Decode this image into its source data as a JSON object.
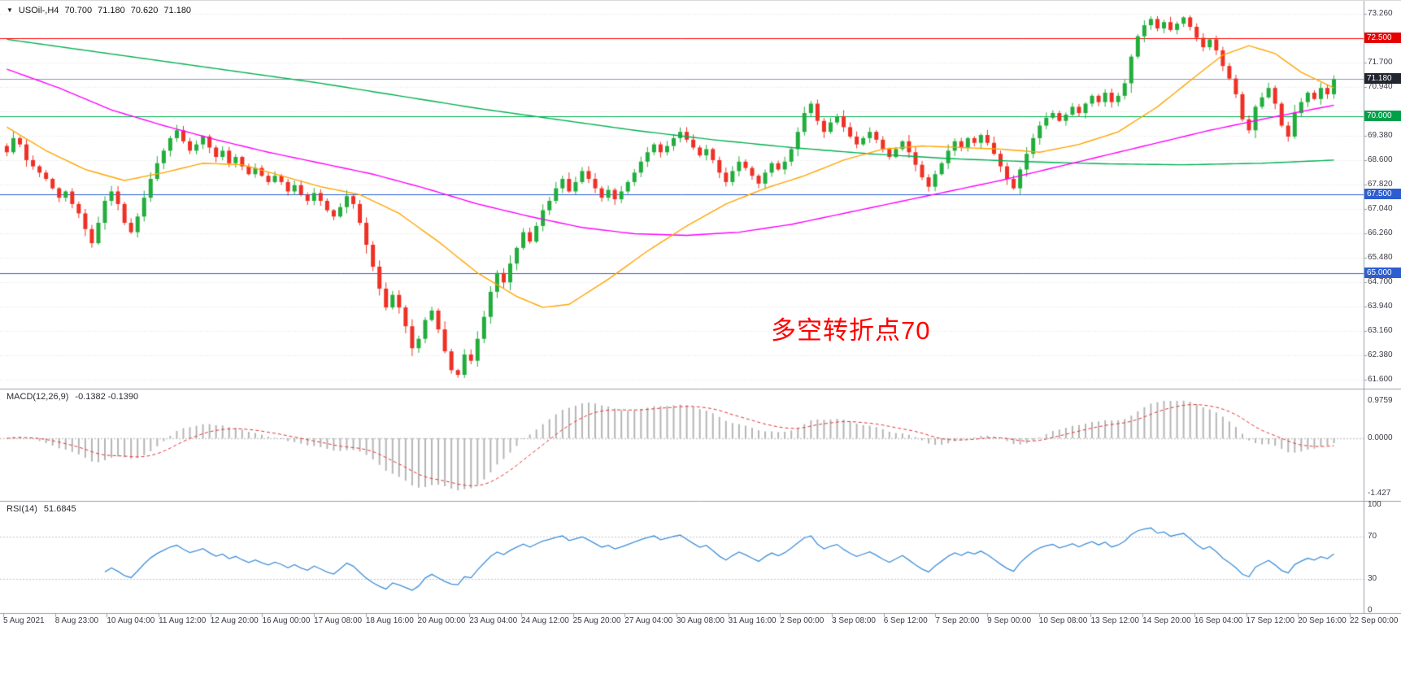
{
  "quote_bar": {
    "symbol_timeframe": "USOil-,H4",
    "open": "70.700",
    "high": "71.180",
    "low": "70.620",
    "close": "71.180"
  },
  "annotation": {
    "text": "多空转折点70",
    "color": "#ff0000"
  },
  "indicators": {
    "macd": {
      "label": "MACD(12,26,9)",
      "values": "-0.1382 -0.1390"
    },
    "rsi": {
      "label": "RSI(14)",
      "values": "51.6845"
    }
  },
  "chart_data": [
    {
      "type": "candlestick",
      "title": "USOil- H4",
      "candle_up_color": "#22ad3c",
      "candle_down_color": "#ef3025",
      "y_axis": {
        "range": [
          61.31,
          73.68
        ],
        "grid_step_prices": [
          73.26,
          72.48,
          71.7,
          70.94,
          70.16,
          69.38,
          68.6,
          67.82,
          67.04,
          66.26,
          65.48,
          64.7,
          63.94,
          63.16,
          62.38,
          61.6
        ],
        "labels": [
          "73.260",
          "71.700",
          "70.940",
          "69.380",
          "68.600",
          "67.820",
          "67.040",
          "66.260",
          "65.480",
          "64.700",
          "63.940",
          "63.160",
          "62.380",
          "61.600"
        ]
      },
      "x_axis_labels": [
        "5 Aug 2021",
        "8 Aug 23:00",
        "10 Aug 04:00",
        "11 Aug 12:00",
        "12 Aug 20:00",
        "16 Aug 00:00",
        "17 Aug 08:00",
        "18 Aug 16:00",
        "20 Aug 00:00",
        "23 Aug 04:00",
        "24 Aug 12:00",
        "25 Aug 20:00",
        "27 Aug 04:00",
        "30 Aug 08:00",
        "31 Aug 16:00",
        "2 Sep 00:00",
        "3 Sep 08:00",
        "6 Sep 12:00",
        "7 Sep 20:00",
        "9 Sep 00:00",
        "10 Sep 08:00",
        "13 Sep 12:00",
        "14 Sep 20:00",
        "16 Sep 04:00",
        "17 Sep 12:00",
        "20 Sep 16:00",
        "22 Sep 00:00"
      ],
      "current_ohlc": [
        70.7,
        71.18,
        70.62,
        71.18
      ],
      "closes": [
        68.85,
        69.3,
        69.1,
        68.6,
        68.4,
        68.2,
        68.0,
        67.7,
        67.4,
        67.6,
        67.2,
        66.9,
        66.4,
        65.95,
        66.6,
        67.3,
        67.6,
        67.2,
        66.6,
        66.3,
        66.8,
        67.4,
        68.0,
        68.5,
        68.9,
        69.3,
        69.55,
        69.2,
        68.9,
        69.1,
        69.35,
        69.0,
        68.7,
        68.9,
        68.5,
        68.7,
        68.4,
        68.15,
        68.35,
        68.1,
        67.9,
        68.1,
        67.9,
        67.6,
        67.8,
        67.5,
        67.3,
        67.55,
        67.3,
        67.0,
        66.8,
        67.1,
        67.45,
        67.2,
        66.6,
        65.9,
        65.2,
        64.5,
        63.9,
        64.3,
        63.9,
        63.3,
        62.6,
        62.9,
        63.5,
        63.8,
        63.2,
        62.5,
        61.9,
        61.75,
        62.4,
        62.2,
        62.9,
        63.6,
        64.4,
        65.0,
        64.7,
        65.3,
        65.8,
        66.3,
        66.0,
        66.5,
        67.0,
        67.3,
        67.7,
        68.0,
        67.6,
        67.9,
        68.25,
        68.0,
        67.7,
        67.4,
        67.65,
        67.35,
        67.6,
        67.9,
        68.2,
        68.55,
        68.85,
        69.1,
        68.85,
        69.05,
        69.3,
        69.5,
        69.25,
        69.0,
        68.75,
        68.95,
        68.6,
        68.2,
        67.9,
        68.25,
        68.55,
        68.35,
        68.1,
        67.85,
        68.2,
        68.5,
        68.3,
        68.55,
        68.95,
        69.5,
        70.1,
        70.4,
        69.85,
        69.5,
        69.8,
        70.0,
        69.65,
        69.35,
        69.1,
        69.3,
        69.5,
        69.25,
        68.95,
        68.7,
        68.95,
        69.2,
        68.85,
        68.45,
        68.05,
        67.75,
        68.15,
        68.5,
        68.9,
        69.2,
        69.0,
        69.3,
        69.15,
        69.4,
        69.15,
        68.8,
        68.4,
        68.0,
        67.7,
        68.3,
        68.8,
        69.3,
        69.7,
        69.95,
        70.1,
        69.85,
        70.05,
        70.3,
        70.1,
        70.4,
        70.65,
        70.45,
        70.75,
        70.45,
        70.65,
        71.05,
        71.9,
        72.55,
        72.9,
        73.1,
        72.8,
        73.0,
        72.75,
        72.95,
        73.15,
        72.85,
        72.5,
        72.2,
        72.45,
        72.1,
        71.6,
        71.2,
        70.7,
        69.9,
        69.55,
        70.3,
        70.6,
        70.9,
        70.4,
        69.7,
        69.35,
        70.1,
        70.45,
        70.75,
        70.55,
        70.9,
        70.7,
        71.18
      ],
      "horizontal_levels": [
        {
          "price": 72.5,
          "label": "72.500",
          "color": "#ff0000",
          "badge_color": "#e60000"
        },
        {
          "price": 70.0,
          "label": "70.000",
          "color": "#00b050",
          "badge_color": "#00a04a"
        },
        {
          "price": 67.5,
          "label": "67.500",
          "color": "#2d5ecf",
          "badge_color": "#2d5ecf"
        },
        {
          "price": 65.0,
          "label": "65.000",
          "color": "#2d5ecf",
          "badge_color": "#2d5ecf"
        }
      ],
      "current_price": {
        "value": 71.18,
        "label": "71.180",
        "line_color": "#85a0b5",
        "badge_color": "#20252e"
      },
      "moving_averages": [
        {
          "name": "ma-slow-green",
          "color": "#00b050",
          "points": [
            [
              0,
              72.45
            ],
            [
              12,
              72.1
            ],
            [
              24,
              71.75
            ],
            [
              36,
              71.4
            ],
            [
              48,
              71.05
            ],
            [
              60,
              70.65
            ],
            [
              72,
              70.25
            ],
            [
              84,
              69.9
            ],
            [
              96,
              69.55
            ],
            [
              108,
              69.25
            ],
            [
              120,
              69.0
            ],
            [
              132,
              68.8
            ],
            [
              144,
              68.65
            ],
            [
              156,
              68.55
            ],
            [
              168,
              68.48
            ],
            [
              180,
              68.45
            ],
            [
              192,
              68.5
            ],
            [
              203,
              68.6
            ]
          ]
        },
        {
          "name": "ma-mid-magenta",
          "color": "#ff00ff",
          "points": [
            [
              0,
              71.5
            ],
            [
              8,
              70.9
            ],
            [
              16,
              70.2
            ],
            [
              24,
              69.7
            ],
            [
              32,
              69.25
            ],
            [
              40,
              68.85
            ],
            [
              48,
              68.5
            ],
            [
              56,
              68.15
            ],
            [
              64,
              67.7
            ],
            [
              72,
              67.2
            ],
            [
              80,
              66.8
            ],
            [
              88,
              66.45
            ],
            [
              96,
              66.25
            ],
            [
              104,
              66.2
            ],
            [
              112,
              66.3
            ],
            [
              120,
              66.55
            ],
            [
              128,
              66.9
            ],
            [
              136,
              67.25
            ],
            [
              144,
              67.6
            ],
            [
              152,
              67.95
            ],
            [
              160,
              68.35
            ],
            [
              168,
              68.75
            ],
            [
              176,
              69.15
            ],
            [
              184,
              69.55
            ],
            [
              192,
              69.9
            ],
            [
              198,
              70.15
            ],
            [
              203,
              70.35
            ]
          ]
        },
        {
          "name": "ma-fast-orange",
          "color": "#ffa500",
          "points": [
            [
              0,
              69.65
            ],
            [
              6,
              68.9
            ],
            [
              12,
              68.3
            ],
            [
              18,
              67.95
            ],
            [
              24,
              68.2
            ],
            [
              30,
              68.5
            ],
            [
              36,
              68.45
            ],
            [
              42,
              68.1
            ],
            [
              48,
              67.75
            ],
            [
              54,
              67.5
            ],
            [
              60,
              66.9
            ],
            [
              66,
              66.0
            ],
            [
              72,
              65.0
            ],
            [
              78,
              64.25
            ],
            [
              82,
              63.9
            ],
            [
              86,
              64.0
            ],
            [
              92,
              64.8
            ],
            [
              98,
              65.7
            ],
            [
              104,
              66.5
            ],
            [
              110,
              67.2
            ],
            [
              116,
              67.7
            ],
            [
              122,
              68.1
            ],
            [
              128,
              68.6
            ],
            [
              134,
              68.95
            ],
            [
              140,
              69.05
            ],
            [
              146,
              69.0
            ],
            [
              152,
              68.95
            ],
            [
              158,
              68.85
            ],
            [
              164,
              69.1
            ],
            [
              170,
              69.5
            ],
            [
              176,
              70.3
            ],
            [
              182,
              71.3
            ],
            [
              186,
              71.95
            ],
            [
              190,
              72.25
            ],
            [
              194,
              72.0
            ],
            [
              198,
              71.4
            ],
            [
              203,
              70.9
            ]
          ]
        }
      ]
    },
    {
      "type": "macd",
      "label": "MACD(12,26,9)",
      "params": [
        12,
        26,
        9
      ],
      "current_values": [
        -0.1382,
        -0.139
      ],
      "scale_labels": [
        {
          "v": 0.9759,
          "label": "0.9759"
        },
        {
          "v": 0.0,
          "label": "0.0000"
        },
        {
          "v": -1.427,
          "label": "-1.427"
        }
      ],
      "histogram_color": "#b5b5b5",
      "signal_color": "#e43434"
    },
    {
      "type": "rsi",
      "label": "RSI(14)",
      "period": 14,
      "current_value": 51.6845,
      "levels": [
        70,
        30
      ],
      "ylim": [
        0,
        100
      ],
      "scale_labels": [
        {
          "v": 100,
          "label": "100"
        },
        {
          "v": 70,
          "label": "70"
        },
        {
          "v": 30,
          "label": "30"
        },
        {
          "v": 0,
          "label": "0"
        }
      ],
      "line_color": "#3f8fd9"
    }
  ]
}
